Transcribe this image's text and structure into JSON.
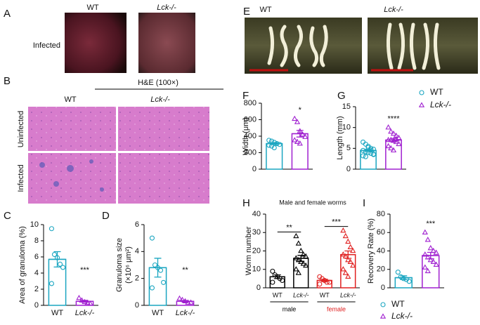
{
  "images": [
    {
      "panel": "A",
      "labels": [
        "WT",
        "Lck-/-"
      ],
      "row_label": "Infected"
    },
    {
      "panel": "B",
      "title": "H&E (100×)",
      "labels": [
        "WT",
        "Lck-/-"
      ],
      "row_labels": [
        "Uninfected",
        "Infected"
      ]
    },
    {
      "panel": "E",
      "labels": [
        "WT",
        "Lck-/-"
      ]
    }
  ],
  "chart_data": [
    {
      "type": "bar",
      "panel": "C",
      "ylabel": "Area of granuloma (%)",
      "categories": [
        "WT",
        "Lck-/-"
      ],
      "values": [
        5.7,
        0.5
      ],
      "errors": [
        0.95,
        0.12
      ],
      "points": [
        [
          9.5,
          6.3,
          5.9,
          5.1,
          4.7,
          2.7
        ],
        [
          0.9,
          0.6,
          0.4,
          0.3,
          0.2
        ]
      ],
      "colors": [
        "#1ba6c1",
        "#a020d0"
      ],
      "markers": [
        "circle",
        "triangle"
      ],
      "ylim": [
        0,
        10
      ],
      "yticks": [
        0,
        2,
        4,
        6,
        8,
        10
      ],
      "annotations": [
        {
          "text": "***",
          "above": 1
        }
      ]
    },
    {
      "type": "bar",
      "panel": "D",
      "ylabel": [
        "Granuloma size",
        "(×10⁶ μm²)"
      ],
      "categories": [
        "WT",
        "Lck-/-"
      ],
      "values": [
        2.8,
        0.3
      ],
      "errors": [
        0.7,
        0.06
      ],
      "points": [
        [
          5.0,
          3.0,
          2.8,
          2.6,
          1.7,
          1.3
        ],
        [
          0.5,
          0.4,
          0.3,
          0.2,
          0.2
        ]
      ],
      "colors": [
        "#1ba6c1",
        "#a020d0"
      ],
      "markers": [
        "circle",
        "triangle"
      ],
      "ylim": [
        0,
        6
      ],
      "yticks": [
        0,
        2,
        4,
        6
      ],
      "annotations": [
        {
          "text": "**",
          "above": 1
        }
      ]
    },
    {
      "type": "bar",
      "panel": "F",
      "ylabel": "Width (μm)",
      "values": [
        310,
        430
      ],
      "errors": [
        12,
        40
      ],
      "points": [
        [
          350,
          340,
          325,
          310,
          300,
          290,
          280,
          260
        ],
        [
          610,
          570,
          460,
          420,
          390,
          350,
          330,
          310
        ]
      ],
      "colors": [
        "#1ba6c1",
        "#a020d0"
      ],
      "markers": [
        "circle",
        "triangle"
      ],
      "ylim": [
        0,
        800
      ],
      "yticks": [
        0,
        200,
        400,
        600,
        800
      ],
      "annotations": [
        {
          "text": "*",
          "above": 1
        }
      ]
    },
    {
      "type": "bar",
      "panel": "G",
      "ylabel": "Length (mm)",
      "values": [
        4.5,
        7.0
      ],
      "errors": [
        0.25,
        0.4
      ],
      "points": [
        [
          6.5,
          6,
          5.5,
          5,
          4.8,
          4.5,
          4.2,
          4,
          3.8,
          3.5,
          3.2,
          3,
          5.2,
          4.6,
          3.6
        ],
        [
          10,
          9,
          8.5,
          8,
          7.5,
          7,
          7,
          6.8,
          6.5,
          6,
          5.5,
          5,
          4.5,
          7.2
        ]
      ],
      "colors": [
        "#1ba6c1",
        "#a020d0"
      ],
      "markers": [
        "circle",
        "triangle"
      ],
      "ylim": [
        0,
        15
      ],
      "yticks": [
        0,
        5,
        10,
        15
      ],
      "annotations": [
        {
          "text": "****",
          "above": 1
        }
      ],
      "legend": {
        "corner": "right",
        "entries": [
          {
            "name": "WT",
            "color": "#1ba6c1",
            "marker": "circle"
          },
          {
            "name": "Lck-/-",
            "color": "#a020d0",
            "marker": "triangle"
          }
        ]
      }
    },
    {
      "type": "bar",
      "panel": "H",
      "title": "Male and female worms",
      "ylabel": "Worm number",
      "categories": [
        "WT",
        "Lck-/-",
        "WT",
        "Lck-/-"
      ],
      "values": [
        6,
        16,
        4,
        18
      ],
      "errors": [
        1,
        1.6,
        0.6,
        2
      ],
      "points": [
        [
          9,
          7,
          6,
          5,
          4,
          3
        ],
        [
          28,
          24,
          20,
          18,
          17,
          16,
          15,
          14,
          13,
          12,
          10,
          8
        ],
        [
          6,
          5,
          4,
          3,
          3,
          2
        ],
        [
          31,
          28,
          25,
          22,
          20,
          18,
          17,
          15,
          14,
          12,
          10,
          8,
          6
        ]
      ],
      "colors": [
        "#000000",
        "#000000",
        "#e02020",
        "#e02020"
      ],
      "markers": [
        "circle",
        "triangle",
        "circle",
        "triangle"
      ],
      "groups": [
        {
          "name": "male",
          "color": "#000000",
          "span": [
            0,
            1
          ]
        },
        {
          "name": "female",
          "color": "#e02020",
          "span": [
            2,
            3
          ]
        }
      ],
      "ylim": [
        0,
        40
      ],
      "yticks": [
        0,
        10,
        20,
        30,
        40
      ],
      "annotations": [
        {
          "text": "**",
          "between": [
            0,
            1
          ]
        },
        {
          "text": "***",
          "between": [
            2,
            3
          ]
        }
      ]
    },
    {
      "type": "bar",
      "panel": "I",
      "ylabel": "Recovery Rate (%)",
      "values": [
        11,
        35
      ],
      "errors": [
        2,
        3.5
      ],
      "points": [
        [
          17,
          12,
          10,
          9,
          7
        ],
        [
          60,
          52,
          43,
          40,
          38,
          36,
          33,
          30,
          28,
          25,
          22,
          18
        ]
      ],
      "colors": [
        "#1ba6c1",
        "#a020d0"
      ],
      "markers": [
        "circle",
        "triangle"
      ],
      "ylim": [
        0,
        80
      ],
      "yticks": [
        0,
        20,
        40,
        60,
        80
      ],
      "annotations": [
        {
          "text": "***",
          "above": 1
        }
      ],
      "legend": {
        "corner": "bottom",
        "entries": [
          {
            "name": "WT",
            "color": "#1ba6c1",
            "marker": "circle"
          },
          {
            "name": "Lck-/-",
            "color": "#a020d0",
            "marker": "triangle"
          }
        ]
      }
    }
  ]
}
